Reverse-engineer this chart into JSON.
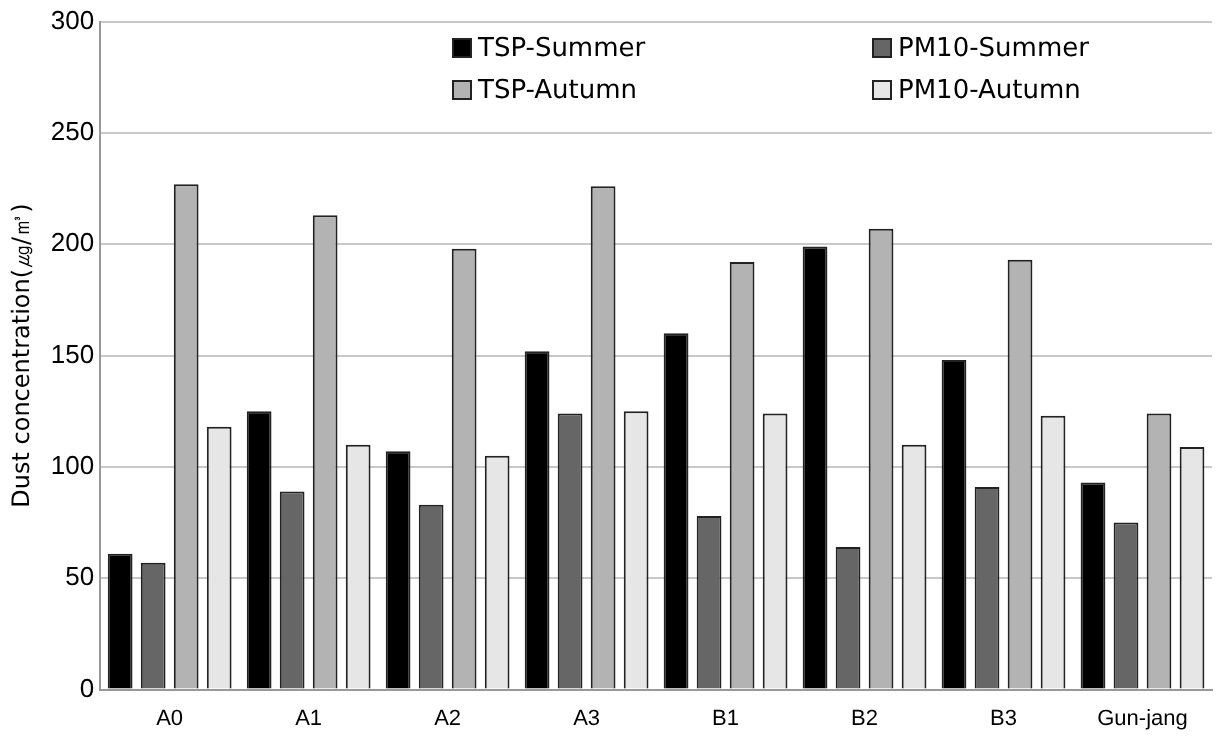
{
  "chart_data": {
    "type": "bar",
    "ylabel": "Dust concentration(㎍/㎥)",
    "categories": [
      "A0",
      "A1",
      "A2",
      "A3",
      "B1",
      "B2",
      "B3",
      "Gun-jang"
    ],
    "series": [
      {
        "name": "TSP-Summer",
        "color": "#000000",
        "values": [
          61,
          125,
          107,
          152,
          160,
          199,
          148,
          93
        ]
      },
      {
        "name": "PM10-Summer",
        "color": "#666666",
        "values": [
          57,
          89,
          83,
          124,
          78,
          64,
          91,
          75
        ]
      },
      {
        "name": "TSP-Autumn",
        "color": "#b3b3b3",
        "values": [
          227,
          213,
          198,
          226,
          192,
          207,
          193,
          124
        ]
      },
      {
        "name": "PM10-Autumn",
        "color": "#e6e6e6",
        "values": [
          118,
          110,
          105,
          125,
          124,
          110,
          123,
          109
        ]
      }
    ],
    "ylim": [
      0,
      300
    ],
    "yticks": [
      0,
      50,
      100,
      150,
      200,
      250,
      300
    ],
    "grid": "y",
    "legend": "top right"
  }
}
